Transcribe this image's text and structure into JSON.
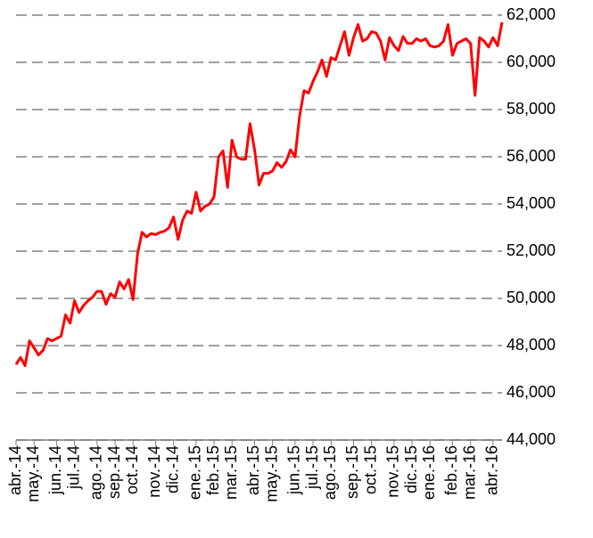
{
  "chart_data": {
    "type": "line",
    "categories": [
      "abr.-14",
      null,
      null,
      null,
      "may.-14",
      null,
      null,
      null,
      null,
      "jun.-14",
      null,
      null,
      null,
      "jul.-14",
      null,
      null,
      null,
      null,
      "ago.-14",
      null,
      null,
      null,
      "sep.-14",
      null,
      null,
      null,
      "oct.-14",
      null,
      null,
      null,
      null,
      "nov.-14",
      null,
      null,
      null,
      "dic.-14",
      null,
      null,
      null,
      null,
      "ene.-15",
      null,
      null,
      null,
      "feb.-15",
      null,
      null,
      null,
      "mar.-15",
      null,
      null,
      null,
      null,
      "abr.-15",
      null,
      null,
      null,
      "may.-15",
      null,
      null,
      null,
      null,
      "jun.-15",
      null,
      null,
      null,
      "jul.-15",
      null,
      null,
      null,
      "ago.-15",
      null,
      null,
      null,
      null,
      "sep.-15",
      null,
      null,
      null,
      "oct.-15",
      null,
      null,
      null,
      null,
      "nov.-15",
      null,
      null,
      null,
      "dic.-15",
      null,
      null,
      null,
      "ene.-16",
      null,
      null,
      null,
      null,
      "feb.-16",
      null,
      null,
      null,
      "mar.-16",
      null,
      null,
      null,
      null,
      "abr.-16",
      null,
      null
    ],
    "values": [
      47200,
      47500,
      47150,
      48200,
      47900,
      47600,
      47800,
      48300,
      48200,
      48300,
      48400,
      49300,
      48950,
      49900,
      49400,
      49700,
      49900,
      50050,
      50300,
      50300,
      49750,
      50200,
      50050,
      50700,
      50400,
      50800,
      49950,
      51900,
      52800,
      52600,
      52750,
      52700,
      52800,
      52850,
      53000,
      53450,
      52500,
      53300,
      53700,
      53600,
      54500,
      53700,
      53900,
      54000,
      54300,
      56000,
      56250,
      54700,
      56700,
      56000,
      55900,
      55900,
      57400,
      56300,
      54800,
      55300,
      55300,
      55400,
      55750,
      55550,
      55800,
      56300,
      56000,
      57700,
      58800,
      58700,
      59200,
      59600,
      60100,
      59400,
      60200,
      60100,
      60700,
      61300,
      60300,
      61050,
      61600,
      60900,
      61000,
      61300,
      61250,
      60900,
      60100,
      61050,
      60700,
      60500,
      61100,
      60800,
      60800,
      61000,
      60900,
      61000,
      60700,
      60650,
      60700,
      60900,
      61600,
      60300,
      60800,
      60900,
      61000,
      60800,
      58600,
      61050,
      60900,
      60650,
      61050,
      60700,
      61700
    ],
    "color": "#ff0000",
    "ylim": [
      44000,
      62000
    ],
    "yticks": [
      {
        "value": 44000,
        "label": "44,000"
      },
      {
        "value": 46000,
        "label": "46,000"
      },
      {
        "value": 48000,
        "label": "48,000"
      },
      {
        "value": 50000,
        "label": "50,000"
      },
      {
        "value": 52000,
        "label": "52,000"
      },
      {
        "value": 54000,
        "label": "54,000"
      },
      {
        "value": 56000,
        "label": "56,000"
      },
      {
        "value": 58000,
        "label": "58,000"
      },
      {
        "value": 60000,
        "label": "60,000"
      },
      {
        "value": 62000,
        "label": "62,000"
      }
    ],
    "grid": true
  }
}
